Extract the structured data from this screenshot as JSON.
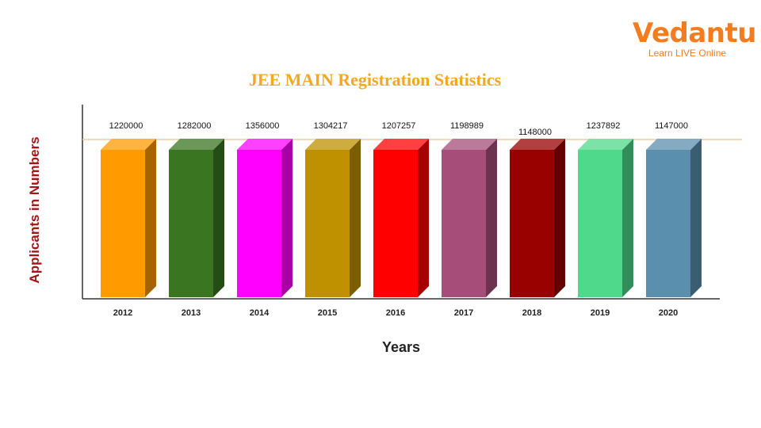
{
  "logo": {
    "brand": "Vedantu",
    "tagline": "Learn LIVE Online"
  },
  "chart_data": {
    "type": "bar",
    "title": "JEE MAIN Registration Statistics",
    "xlabel": "Years",
    "ylabel": "Applicants in Numbers",
    "categories": [
      "2012",
      "2013",
      "2014",
      "2015",
      "2016",
      "2017",
      "2018",
      "2019",
      "2020"
    ],
    "values": [
      1220000,
      1282000,
      1356000,
      1304217,
      1207257,
      1198989,
      1148000,
      1237892,
      1147000
    ],
    "colors": [
      "#ff9a00",
      "#3a7522",
      "#ff00ff",
      "#bf9000",
      "#ff0000",
      "#a64d79",
      "#990000",
      "#4fd98a",
      "#5b8fae"
    ],
    "grid": false,
    "legend": "none"
  }
}
